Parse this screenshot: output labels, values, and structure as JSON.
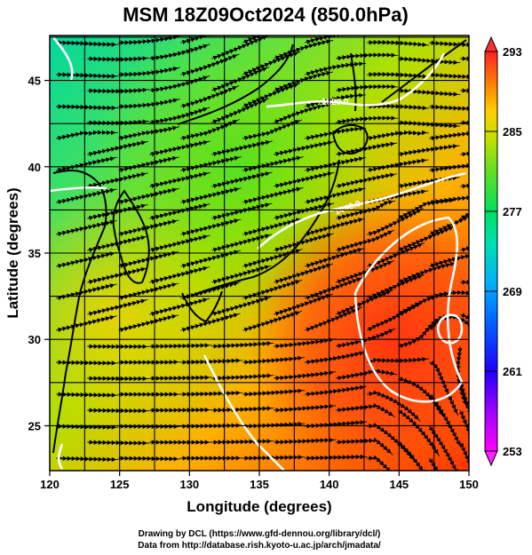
{
  "title": "MSM 18Z09Oct2024 (850.0hPa)",
  "x_axis": {
    "label": "Longitude (degrees)",
    "ticks": [
      "120",
      "125",
      "130",
      "135",
      "140",
      "145",
      "150"
    ]
  },
  "y_axis": {
    "label": "Latitude  (degrees)",
    "ticks": [
      "25",
      "30",
      "35",
      "40",
      "45"
    ]
  },
  "colorbar": {
    "ticks": [
      "253",
      "261",
      "269",
      "277",
      "285",
      "293"
    ],
    "colors": [
      "#ff00ff",
      "#8000ff",
      "#0000ff",
      "#0080ff",
      "#00c0ff",
      "#00e0c0",
      "#00e080",
      "#40e040",
      "#80e000",
      "#c0e000",
      "#ffd000",
      "#ff9000",
      "#ff4000",
      "#ff2020"
    ]
  },
  "contour_labels": [
    "1520.0",
    "1440.0"
  ],
  "credits": {
    "line1": "Drawing by DCL (https://www.gfd-dennou.org/library/dcl/)",
    "line2": "Data from http://database.rish.kyoto-u.ac.jp/arch/jmadata/"
  },
  "chart_data": {
    "type": "heatmap",
    "title": "MSM 18Z09Oct2024 (850.0hPa)",
    "xlabel": "Longitude (degrees)",
    "ylabel": "Latitude  (degrees)",
    "xlim": [
      120,
      150
    ],
    "ylim": [
      22.4,
      47.6
    ],
    "colorbar_range": [
      253,
      293
    ],
    "overlays": [
      "850 hPa temperature (shaded)",
      "geopotential height contours (white)",
      "wind streamlines (black)",
      "coastlines",
      "lat/lon grid"
    ]
  }
}
